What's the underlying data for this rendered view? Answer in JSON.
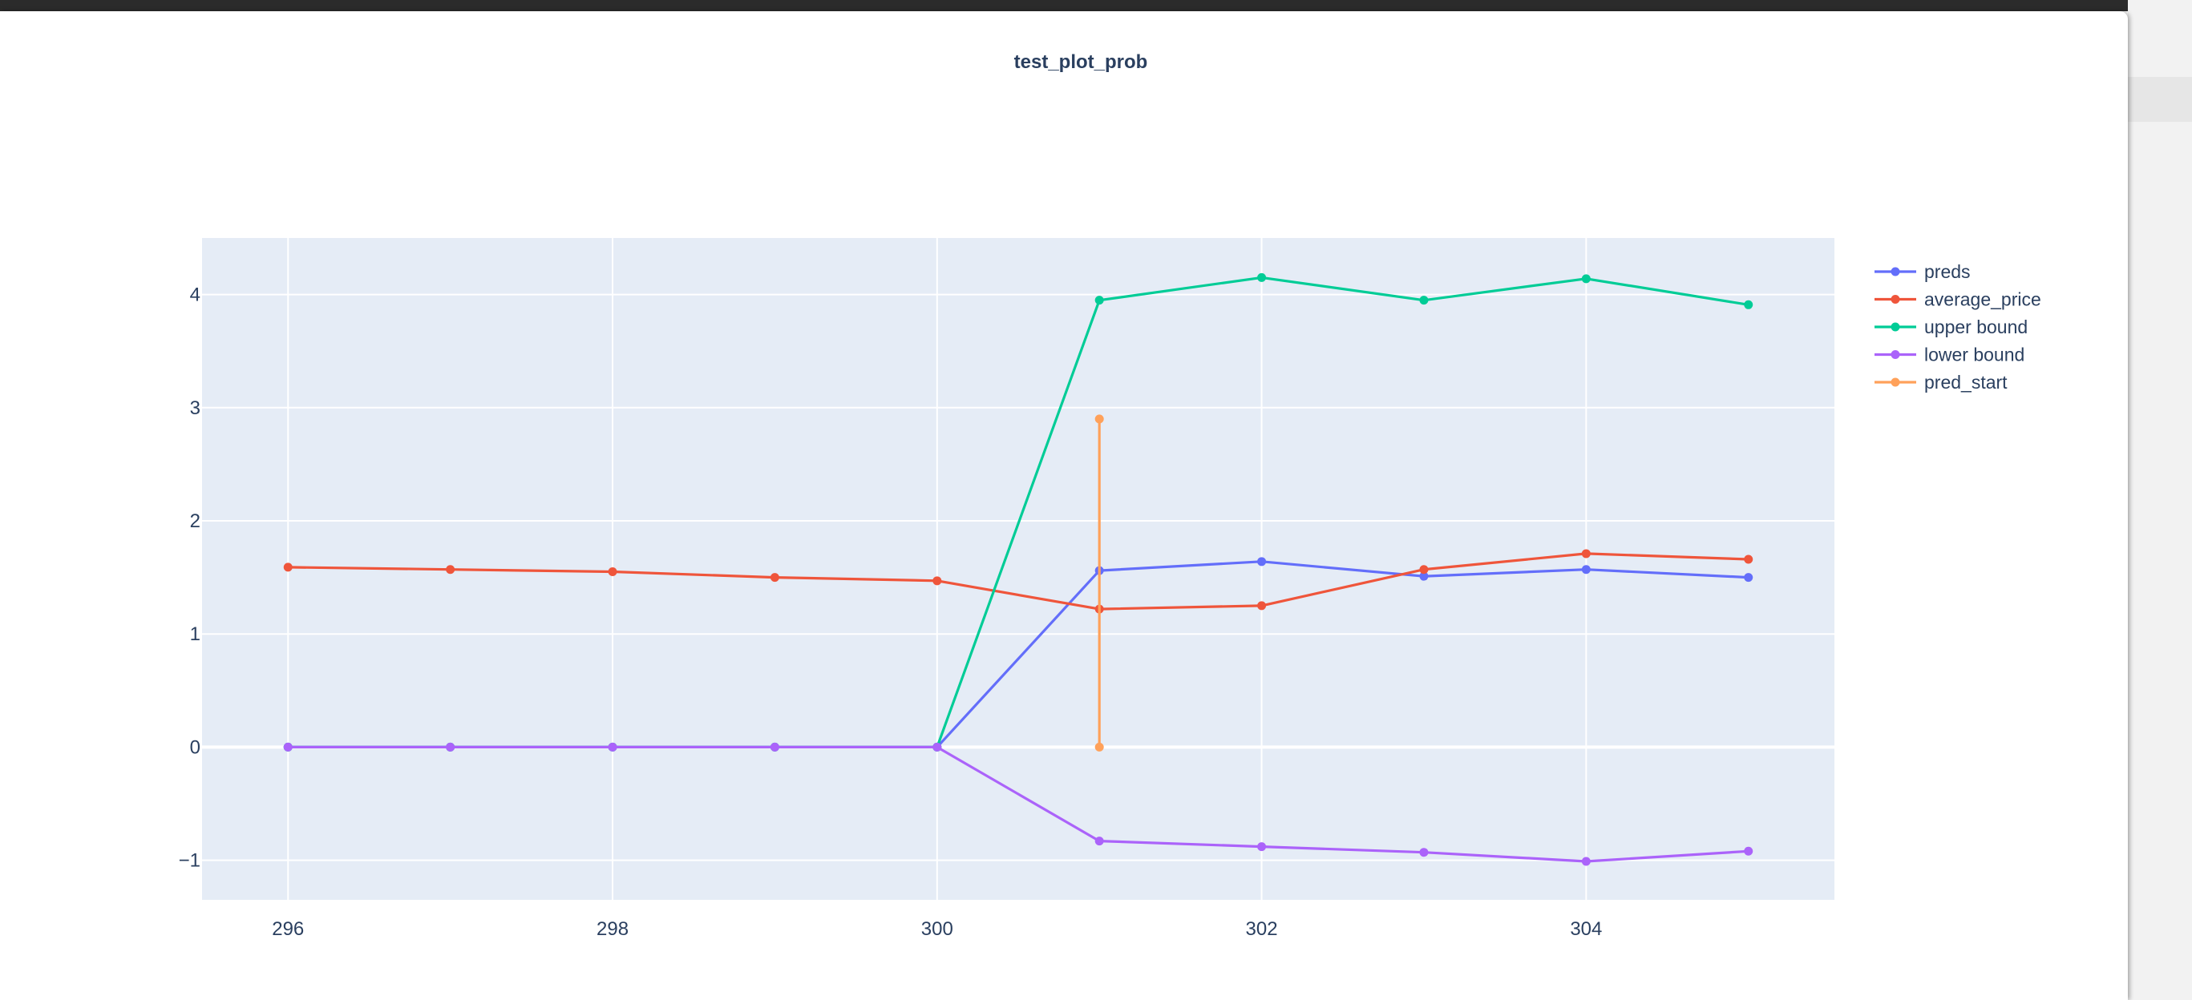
{
  "chart_data": {
    "type": "line",
    "title": "test_plot_prob",
    "xlabel": "",
    "ylabel": "",
    "xlim": [
      295.47,
      305.53
    ],
    "ylim": [
      -1.35,
      4.5
    ],
    "x_ticks": [
      296,
      298,
      300,
      302,
      304
    ],
    "x_tick_labels": [
      "296",
      "298",
      "300",
      "302",
      "304"
    ],
    "y_ticks": [
      -1,
      0,
      1,
      2,
      3,
      4
    ],
    "y_tick_labels": [
      "−1",
      "0",
      "1",
      "2",
      "3",
      "4"
    ],
    "grid": true,
    "legend_position": "top-right outside",
    "series": [
      {
        "name": "preds",
        "color": "#636efa",
        "x": [
          296,
          297,
          298,
          299,
          300,
          301,
          302,
          303,
          304,
          305
        ],
        "y": [
          0,
          0,
          0,
          0,
          0,
          1.56,
          1.64,
          1.51,
          1.57,
          1.5
        ]
      },
      {
        "name": "average_price",
        "color": "#ef553b",
        "x": [
          296,
          297,
          298,
          299,
          300,
          301,
          302,
          303,
          304,
          305
        ],
        "y": [
          1.59,
          1.57,
          1.55,
          1.5,
          1.47,
          1.22,
          1.25,
          1.57,
          1.71,
          1.66
        ]
      },
      {
        "name": "upper bound",
        "color": "#00cc96",
        "x": [
          296,
          297,
          298,
          299,
          300,
          301,
          302,
          303,
          304,
          305
        ],
        "y": [
          0,
          0,
          0,
          0,
          0,
          3.95,
          4.15,
          3.95,
          4.14,
          3.91
        ]
      },
      {
        "name": "lower bound",
        "color": "#ab63fa",
        "x": [
          296,
          297,
          298,
          299,
          300,
          301,
          302,
          303,
          304,
          305
        ],
        "y": [
          0,
          0,
          0,
          0,
          0,
          -0.83,
          -0.88,
          -0.93,
          -1.01,
          -0.92
        ]
      },
      {
        "name": "pred_start",
        "color": "#ffa15a",
        "x": [
          301,
          301
        ],
        "y": [
          0,
          2.9
        ]
      }
    ]
  }
}
